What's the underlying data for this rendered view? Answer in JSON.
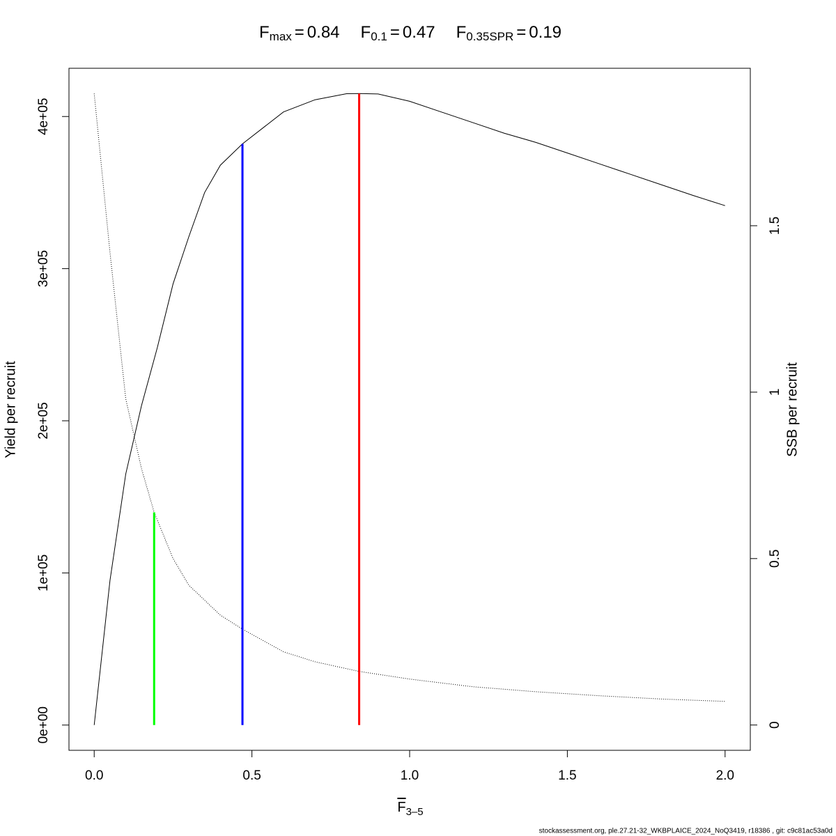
{
  "chart_data": {
    "type": "line",
    "title": [
      {
        "symbol": "F",
        "subscript": "max",
        "relation": "=",
        "value": 0.84
      },
      {
        "symbol": "F",
        "subscript": "0.1",
        "relation": "=",
        "value": 0.47
      },
      {
        "symbol": "F",
        "subscript": "0.35SPR",
        "relation": "=",
        "value": 0.19
      }
    ],
    "xlabel": {
      "symbol": "F",
      "subscript": "3–5"
    },
    "ylabel": "Yield per recruit",
    "y2label": "SSB per recruit",
    "footer": "stockassessment.org, ple.27.21-32_WKBPLAICE_2024_NoQ3419, r18386 , git: c9c81ac53a0d",
    "xlim": [
      -0.08,
      2.08
    ],
    "ylim": [
      -16600,
      431700
    ],
    "y2lim": [
      -0.076,
      1.973
    ],
    "xticks": [
      {
        "value": 0,
        "label": "0.0"
      },
      {
        "value": 0.5,
        "label": "0.5"
      },
      {
        "value": 1,
        "label": "1.0"
      },
      {
        "value": 1.5,
        "label": "1.5"
      },
      {
        "value": 2,
        "label": "2.0"
      }
    ],
    "yticks": [
      {
        "value": 0,
        "label": "0e+00"
      },
      {
        "value": 100000,
        "label": "1e+05"
      },
      {
        "value": 200000,
        "label": "2e+05"
      },
      {
        "value": 300000,
        "label": "3e+05"
      },
      {
        "value": 400000,
        "label": "4e+05"
      }
    ],
    "y2ticks": [
      0,
      0.5,
      1,
      1.5
    ],
    "series": [
      {
        "color": "#000000",
        "style": "solid",
        "axis": "y",
        "x": [
          0,
          0.05,
          0.1,
          0.15,
          0.2,
          0.25,
          0.3,
          0.35,
          0.4,
          0.47,
          0.6,
          0.7,
          0.8,
          0.84,
          0.9,
          1.0,
          1.1,
          1.2,
          1.3,
          1.4,
          1.5,
          1.6,
          1.7,
          1.8,
          1.9,
          2.0
        ],
        "values": [
          0,
          95000,
          165000,
          210000,
          248000,
          290000,
          321000,
          350000,
          368000,
          382000,
          403000,
          411000,
          415000,
          415100,
          414800,
          410000,
          403000,
          396000,
          389000,
          383000,
          376000,
          369000,
          362000,
          355000,
          348000,
          341400
        ]
      },
      {
        "color": "#000000",
        "style": "dotted",
        "axis": "y2",
        "x": [
          0,
          0.05,
          0.1,
          0.15,
          0.19,
          0.25,
          0.3,
          0.4,
          0.47,
          0.6,
          0.7,
          0.84,
          1.0,
          1.2,
          1.4,
          1.6,
          1.8,
          2.0
        ],
        "values": [
          1.897,
          1.42,
          0.98,
          0.77,
          0.639,
          0.5,
          0.42,
          0.33,
          0.288,
          0.22,
          0.19,
          0.161,
          0.138,
          0.115,
          0.1,
          0.088,
          0.078,
          0.071
        ]
      }
    ],
    "reference_lines": [
      {
        "ref": 0,
        "top": 415100,
        "axis": "y",
        "color": "#ff0000"
      },
      {
        "ref": 1,
        "top": 382000,
        "axis": "y",
        "color": "#0000ff"
      },
      {
        "ref": 2,
        "top": 0.639,
        "axis": "y2",
        "color": "#00ff00"
      }
    ]
  }
}
